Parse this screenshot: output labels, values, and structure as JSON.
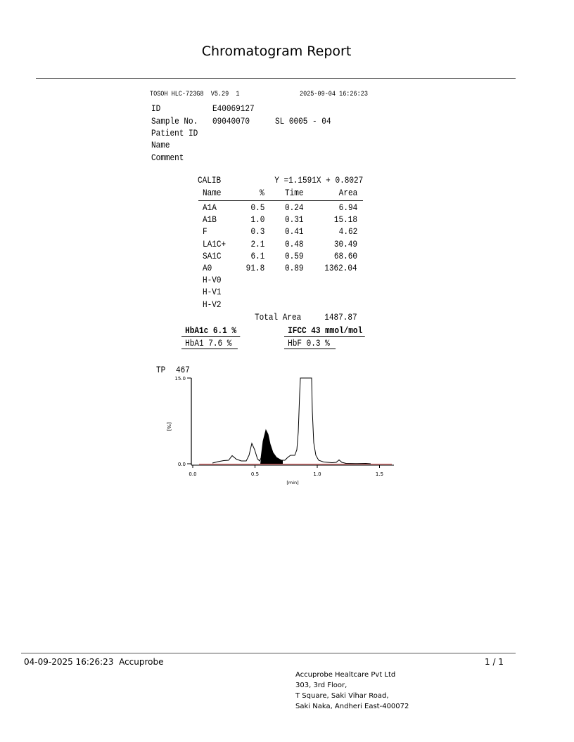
{
  "title": "Chromatogram Report",
  "printout": {
    "instrument": "TOSOH HLC-723G8  V5.29  1",
    "datetime": "2025-09-04 16:26:23",
    "id_label": "ID",
    "id_value": "E40069127",
    "sample_label": "Sample No.",
    "sample_value": "09040070",
    "sl_value": "SL 0005 - 04",
    "patient_id_label": "Patient ID",
    "name_label": "Name",
    "comment_label": "Comment",
    "calib_label": "CALIB",
    "calib_equation": "Y =1.1591X + 0.8027",
    "columns": [
      "Name",
      "%",
      "Time",
      "Area"
    ],
    "rows": [
      {
        "name": "A1A",
        "pct": "0.5",
        "time": "0.24",
        "area": "6.94"
      },
      {
        "name": "A1B",
        "pct": "1.0",
        "time": "0.31",
        "area": "15.18"
      },
      {
        "name": "F",
        "pct": "0.3",
        "time": "0.41",
        "area": "4.62"
      },
      {
        "name": "LA1C+",
        "pct": "2.1",
        "time": "0.48",
        "area": "30.49"
      },
      {
        "name": "SA1C",
        "pct": "6.1",
        "time": "0.59",
        "area": "68.60"
      },
      {
        "name": "A0",
        "pct": "91.8",
        "time": "0.89",
        "area": "1362.04"
      },
      {
        "name": "H-V0",
        "pct": "",
        "time": "",
        "area": ""
      },
      {
        "name": "H-V1",
        "pct": "",
        "time": "",
        "area": ""
      },
      {
        "name": "H-V2",
        "pct": "",
        "time": "",
        "area": ""
      }
    ],
    "total_area_label": "Total Area",
    "total_area_value": "1487.87",
    "hba1c": "HbA1c 6.1 %",
    "ifcc": "IFCC 43 mmol/mol",
    "hba1": "HbA1 7.6 %",
    "hbf": "HbF 0.3 %",
    "tp_label": "TP",
    "tp_value": "467"
  },
  "chromatogram": {
    "y_max_label": "15.0",
    "y_min_label": "0.0",
    "y_unit": "[%]",
    "x_ticks": [
      "0.0",
      "0.5",
      "1.0",
      "1.5"
    ],
    "x_unit": "[min]",
    "baseline_color": "#c83232",
    "fill_color": "#000000"
  },
  "footer": {
    "printed": "04-09-2025 16:26:23  Accuprobe",
    "page": "1 / 1",
    "address": [
      "Accuprobe Healtcare Pvt Ltd",
      "303, 3rd Floor,",
      "T Square, Saki Vihar Road,",
      "Saki Naka, Andheri East-400072"
    ]
  }
}
